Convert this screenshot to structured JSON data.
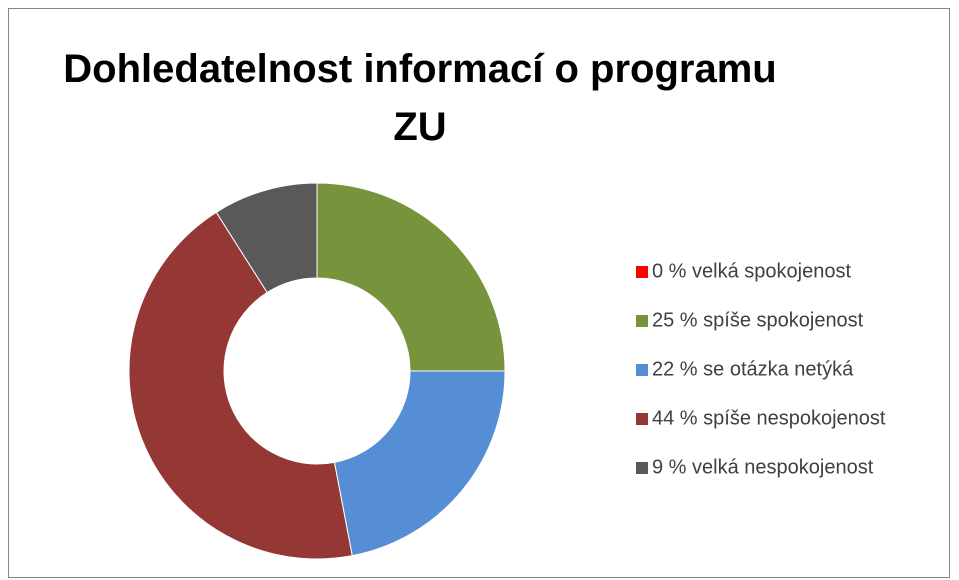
{
  "chart_data": {
    "type": "donut",
    "title": "Dohledatelnost informací o programu ZU",
    "categories": [
      "0 % velká spokojenost",
      "25 % spíše spokojenost",
      "22 % se otázka netýká",
      "44 % spíše nespokojenost",
      "9 % velká nespokojenost"
    ],
    "values": [
      0,
      25,
      22,
      44,
      9
    ],
    "colors": [
      "#ff0000",
      "#77933c",
      "#558ed5",
      "#953735",
      "#595959"
    ],
    "legend": "right"
  }
}
